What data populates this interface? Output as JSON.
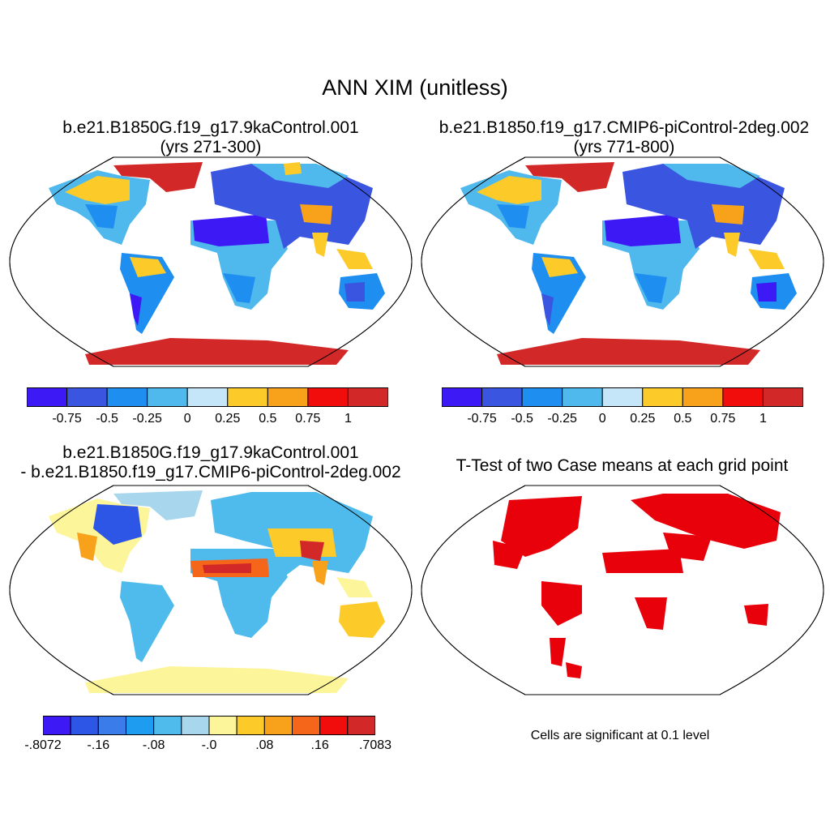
{
  "figure": {
    "title": "ANN XIM (unitless)"
  },
  "panels": {
    "p1": {
      "title_line1": "b.e21.B1850G.f19_g17.9kaControl.001",
      "title_line2": "(yrs 271-300)"
    },
    "p2": {
      "title_line1": "b.e21.B1850.f19_g17.CMIP6-piControl-2deg.002",
      "title_line2": "(yrs 771-800)"
    },
    "p3": {
      "title_line1": "b.e21.B1850G.f19_g17.9kaControl.001",
      "title_line2": "- b.e21.B1850.f19_g17.CMIP6-piControl-2deg.002"
    },
    "p4": {
      "title_line1": "T-Test of two Case means at each grid point",
      "note": "Cells are significant at 0.1 level"
    }
  },
  "colorbars": {
    "cases": {
      "colors": [
        "#3d19f5",
        "#3a55e0",
        "#1e8ef0",
        "#4fb8ec",
        "#c5e6f8",
        "#fccb2a",
        "#f8a21c",
        "#f20d0d",
        "#d22828"
      ],
      "labels": [
        "-0.75",
        "-0.5",
        "-0.25",
        "0",
        "0.25",
        "0.5",
        "0.75",
        "1"
      ]
    },
    "diff": {
      "colors": [
        "#3d19f5",
        "#2d55e6",
        "#3a7cea",
        "#1e9cf0",
        "#4fbaec",
        "#a8d6ec",
        "#fcf59a",
        "#fccb2a",
        "#f8a21c",
        "#f5661a",
        "#f20d0d",
        "#d22828"
      ],
      "labels": [
        "-.8072",
        "-.16",
        "-.08",
        "-.0",
        ".08",
        ".16",
        ".7083"
      ]
    }
  },
  "map_colors": {
    "ocean": "#ffffff",
    "outline": "#000000",
    "significant": "#e8000b"
  }
}
